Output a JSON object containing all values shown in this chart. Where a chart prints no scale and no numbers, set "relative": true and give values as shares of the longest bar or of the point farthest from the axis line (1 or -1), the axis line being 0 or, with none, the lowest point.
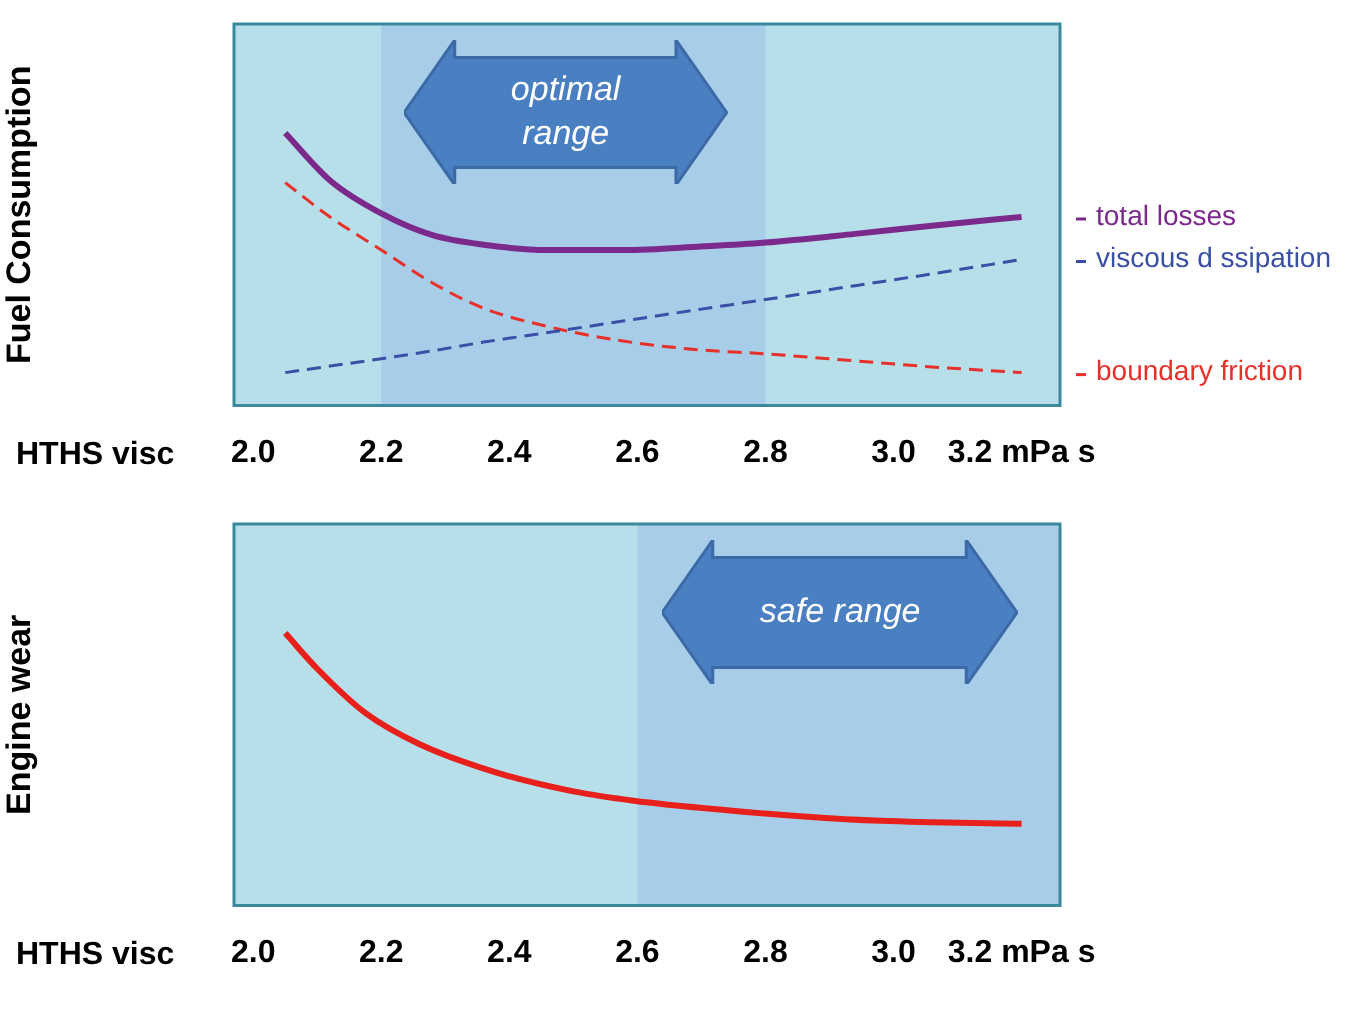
{
  "chart_data": [
    {
      "type": "line",
      "xlabel": "HTHS visc",
      "ylabel": "Fuel Consumption",
      "relative": true,
      "marker": "none",
      "legend": "right",
      "xlim": [
        1.97,
        3.26
      ],
      "xticks": [
        {
          "value": 2,
          "label": "2.0"
        },
        2.2,
        2.4,
        2.6,
        2.8,
        {
          "value": 3,
          "label": "3.0"
        },
        {
          "value": 3.2,
          "label": "3.2 mPa s"
        }
      ],
      "x": [
        2.05,
        2.12,
        2.2,
        2.28,
        2.36,
        2.46,
        2.58,
        2.7,
        2.8,
        2.94,
        3.06,
        3.2
      ],
      "series": [
        {
          "name": "total losses",
          "color": "#7b2a8c",
          "line_style": "solid",
          "values": [
            1,
            0.826,
            0.705,
            0.625,
            0.59,
            0.571,
            0.571,
            0.584,
            0.598,
            0.63,
            0.66,
            0.692
          ]
        },
        {
          "name": "viscous d ssipation",
          "color": "#3a4fa6",
          "line_style": "dashed",
          "values": [
            0.121,
            0.145,
            0.172,
            0.201,
            0.233,
            0.268,
            0.311,
            0.354,
            0.389,
            0.44,
            0.483,
            0.536
          ]
        },
        {
          "name": "boundary friction",
          "color": "#e8302a",
          "line_style": "dashed",
          "values": [
            0.818,
            0.692,
            0.571,
            0.45,
            0.357,
            0.29,
            0.236,
            0.204,
            0.19,
            0.164,
            0.142,
            0.121
          ]
        }
      ],
      "bands": [
        {
          "axis": "x",
          "from": 2.2,
          "to": 2.8,
          "label": "optimal range",
          "color": "#a8cde8"
        }
      ]
    },
    {
      "type": "line",
      "xlabel": "HTHS visc",
      "ylabel": "Engine wear",
      "relative": true,
      "marker": "none",
      "xlim": [
        1.97,
        3.26
      ],
      "xticks": [
        {
          "value": 2,
          "label": "2.0"
        },
        2.2,
        2.4,
        2.6,
        2.8,
        {
          "value": 3,
          "label": "3.0"
        },
        {
          "value": 3.2,
          "label": "3.2 mPa s"
        }
      ],
      "x": [
        2.05,
        2.1,
        2.175,
        2.26,
        2.38,
        2.5,
        2.594,
        2.74,
        2.86,
        2.98,
        3.2
      ],
      "series": [
        {
          "color": "#e8201c",
          "line_style": "solid",
          "values": [
            1,
            0.869,
            0.707,
            0.592,
            0.488,
            0.419,
            0.385,
            0.35,
            0.327,
            0.311,
            0.3
          ]
        }
      ],
      "bands": [
        {
          "axis": "x",
          "from": 2.6,
          "to": 3.26,
          "label": "safe range",
          "color": "#a8cde8"
        }
      ]
    }
  ]
}
